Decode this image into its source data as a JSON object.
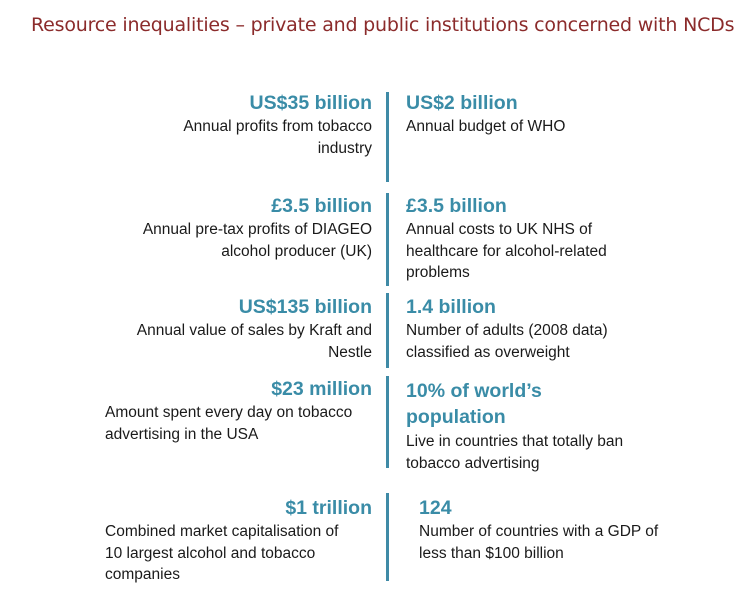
{
  "title": "Resource inequalities – private and public institutions concerned with NCDs",
  "accent_color": "#3a8ca7",
  "title_color": "#8b2b2b",
  "rows": [
    {
      "left": {
        "figure": "US$35 billion",
        "desc": "Annual profits from tobacco industry"
      },
      "right": {
        "figure": "US$2 billion",
        "desc": "Annual budget of WHO"
      }
    },
    {
      "left": {
        "figure": "£3.5 billion",
        "desc": "Annual pre-tax profits of DIAGEO alcohol producer (UK)"
      },
      "right": {
        "figure": "£3.5 billion",
        "desc": "Annual costs to UK NHS of healthcare for alcohol-related problems"
      }
    },
    {
      "left": {
        "figure": "US$135 billion",
        "desc": "Annual value of sales by Kraft and Nestle"
      },
      "right": {
        "figure": "1.4 billion",
        "desc": "Number of adults (2008 data) classified as overweight"
      }
    },
    {
      "left": {
        "figure": "$23 million",
        "desc": "Amount spent every day on tobacco advertising in the USA"
      },
      "right": {
        "figure": "10% of world’s population",
        "desc": "Live in countries that totally ban tobacco advertising"
      }
    },
    {
      "left": {
        "figure": "$1 trillion",
        "desc": "Combined market capitalisation of 10 largest alcohol and tobacco companies"
      },
      "right": {
        "figure": "124",
        "desc": "Number of countries with a GDP of less than $100 billion"
      }
    }
  ]
}
